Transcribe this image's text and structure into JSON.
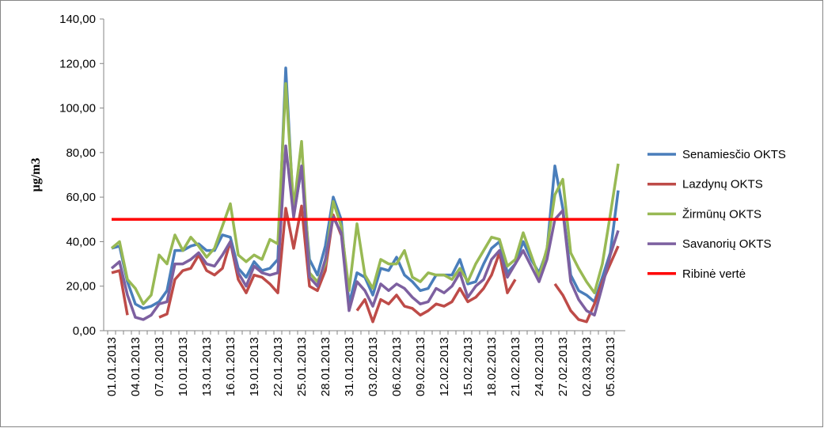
{
  "chart_data": {
    "type": "line",
    "y_label": "µg/m3",
    "categories": [
      "01.01.2013",
      null,
      null,
      "04.01.2013",
      null,
      null,
      "07.01.2013",
      null,
      null,
      "10.01.2013",
      null,
      null,
      "13.01.2013",
      null,
      null,
      "16.01.2013",
      null,
      null,
      "19.01.2013",
      null,
      null,
      "22.01.2013",
      null,
      null,
      "25.01.2013",
      null,
      null,
      "28.01.2013",
      null,
      null,
      "31.01.2013",
      null,
      null,
      "03.02.2013",
      null,
      null,
      "06.02.2013",
      null,
      null,
      "09.02.2013",
      null,
      null,
      "12.02.2013",
      null,
      null,
      "15.02.2013",
      null,
      null,
      "18.02.2013",
      null,
      null,
      "21.02.2013",
      null,
      null,
      "24.02.2013",
      null,
      null,
      "27.02.2013",
      null,
      null,
      "02.03.2013",
      null,
      null,
      "05.03.2013",
      null
    ],
    "ylim": [
      0,
      140
    ],
    "yticks": [
      {
        "value": 0,
        "label": "0,00"
      },
      {
        "value": 20,
        "label": "20,00"
      },
      {
        "value": 40,
        "label": "40,00"
      },
      {
        "value": 60,
        "label": "60,00"
      },
      {
        "value": 80,
        "label": "80,00"
      },
      {
        "value": 100,
        "label": "100,00"
      },
      {
        "value": 120,
        "label": "120,00"
      },
      {
        "value": 140,
        "label": "140,00"
      }
    ],
    "grid": false,
    "legend": "right",
    "series": [
      {
        "name": "Senamiesčio OKTS",
        "color": "#4a7ebb",
        "values": [
          37,
          38,
          22,
          12,
          10,
          11,
          13,
          18,
          36,
          36,
          38,
          39,
          36,
          36,
          43,
          42,
          28,
          24,
          31,
          27,
          28,
          32,
          118,
          52,
          73,
          32,
          25,
          38,
          60,
          50,
          12,
          26,
          24,
          16,
          28,
          27,
          33,
          25,
          22,
          18,
          19,
          25,
          25,
          25,
          32,
          21,
          22,
          30,
          37,
          40,
          26,
          30,
          40,
          32,
          26,
          36,
          74,
          55,
          25,
          18,
          16,
          13,
          24,
          35,
          63
        ]
      },
      {
        "name": "Lazdynų OKTS",
        "color": "#be4b48",
        "values": [
          26,
          27,
          7,
          null,
          null,
          null,
          6,
          7.5,
          23,
          27,
          28,
          34,
          27,
          25,
          28,
          40,
          23,
          17,
          25,
          24,
          21,
          17,
          55,
          37,
          56,
          20,
          18,
          27,
          52,
          43,
          null,
          9,
          14,
          4,
          14,
          12,
          16,
          11,
          10,
          7,
          9,
          12,
          11,
          13,
          19,
          13,
          15,
          19,
          25,
          35,
          17,
          23,
          null,
          null,
          null,
          null,
          21,
          16,
          9,
          5,
          4,
          12,
          22,
          30,
          38
        ]
      },
      {
        "name": "Žirmūnų OKTS",
        "color": "#98b954",
        "values": [
          37,
          40,
          23,
          19,
          12,
          16,
          34,
          30,
          43,
          36,
          42,
          38,
          33,
          37,
          47,
          57,
          34,
          31,
          34,
          32,
          41,
          39,
          111,
          55,
          85,
          26,
          22,
          30,
          58,
          47,
          18,
          48,
          25,
          19,
          32,
          30,
          30,
          36,
          24,
          22,
          26,
          25,
          25,
          23,
          28,
          22,
          30,
          36,
          42,
          41,
          29,
          32,
          44,
          34,
          24,
          37,
          61,
          68,
          35,
          28,
          22,
          17,
          30,
          52,
          75
        ]
      },
      {
        "name": "Savanorių OKTS",
        "color": "#7d60a0",
        "values": [
          28,
          31,
          16,
          6,
          5,
          7,
          12,
          13,
          30,
          30,
          32,
          35,
          30,
          29,
          34,
          40,
          26,
          20,
          29,
          26,
          25,
          26,
          83,
          51,
          74,
          24,
          20,
          32,
          51,
          44,
          9,
          22,
          18,
          11,
          21,
          18,
          21,
          19,
          15,
          12,
          13,
          19,
          17,
          20,
          26,
          15,
          20,
          23,
          32,
          36,
          24,
          30,
          36,
          29,
          22,
          32,
          50,
          54,
          22,
          14,
          9,
          7,
          20,
          34,
          45
        ]
      },
      {
        "name": "Ribinė vertė",
        "color": "#ff0000",
        "values": [
          50,
          50,
          50,
          50,
          50,
          50,
          50,
          50,
          50,
          50,
          50,
          50,
          50,
          50,
          50,
          50,
          50,
          50,
          50,
          50,
          50,
          50,
          50,
          50,
          50,
          50,
          50,
          50,
          50,
          50,
          50,
          50,
          50,
          50,
          50,
          50,
          50,
          50,
          50,
          50,
          50,
          50,
          50,
          50,
          50,
          50,
          50,
          50,
          50,
          50,
          50,
          50,
          50,
          50,
          50,
          50,
          50,
          50,
          50,
          50,
          50,
          50,
          50,
          50,
          50
        ]
      }
    ]
  }
}
